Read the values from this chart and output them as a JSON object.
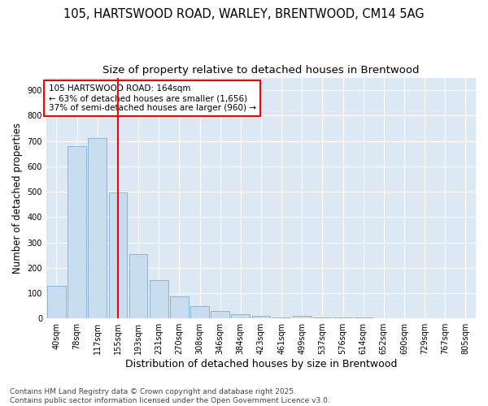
{
  "title_line1": "105, HARTSWOOD ROAD, WARLEY, BRENTWOOD, CM14 5AG",
  "title_line2": "Size of property relative to detached houses in Brentwood",
  "xlabel": "Distribution of detached houses by size in Brentwood",
  "ylabel": "Number of detached properties",
  "categories": [
    "40sqm",
    "78sqm",
    "117sqm",
    "155sqm",
    "193sqm",
    "231sqm",
    "270sqm",
    "308sqm",
    "346sqm",
    "384sqm",
    "423sqm",
    "461sqm",
    "499sqm",
    "537sqm",
    "576sqm",
    "614sqm",
    "652sqm",
    "690sqm",
    "729sqm",
    "767sqm",
    "805sqm"
  ],
  "values": [
    130,
    678,
    710,
    496,
    255,
    152,
    86,
    50,
    28,
    17,
    10,
    5,
    10,
    5,
    5,
    5,
    2,
    2,
    2,
    2,
    2
  ],
  "bar_color": "#c8ddf0",
  "bar_edge_color": "#7aafd4",
  "vline_color": "red",
  "vline_pos": 3.5,
  "annotation_text": "105 HARTSWOOD ROAD: 164sqm\n← 63% of detached houses are smaller (1,656)\n37% of semi-detached houses are larger (960) →",
  "annotation_box_facecolor": "white",
  "annotation_box_edgecolor": "red",
  "background_color": "#ffffff",
  "plot_bg_color": "#dce9f5",
  "grid_color": "#ffffff",
  "ylim": [
    0,
    950
  ],
  "yticks": [
    0,
    100,
    200,
    300,
    400,
    500,
    600,
    700,
    800,
    900
  ],
  "footer_text": "Contains HM Land Registry data © Crown copyright and database right 2025.\nContains public sector information licensed under the Open Government Licence v3.0.",
  "title_fontsize": 10.5,
  "subtitle_fontsize": 9.5,
  "tick_fontsize": 7,
  "ylabel_fontsize": 8.5,
  "xlabel_fontsize": 9,
  "annotation_fontsize": 7.5,
  "footer_fontsize": 6.5
}
